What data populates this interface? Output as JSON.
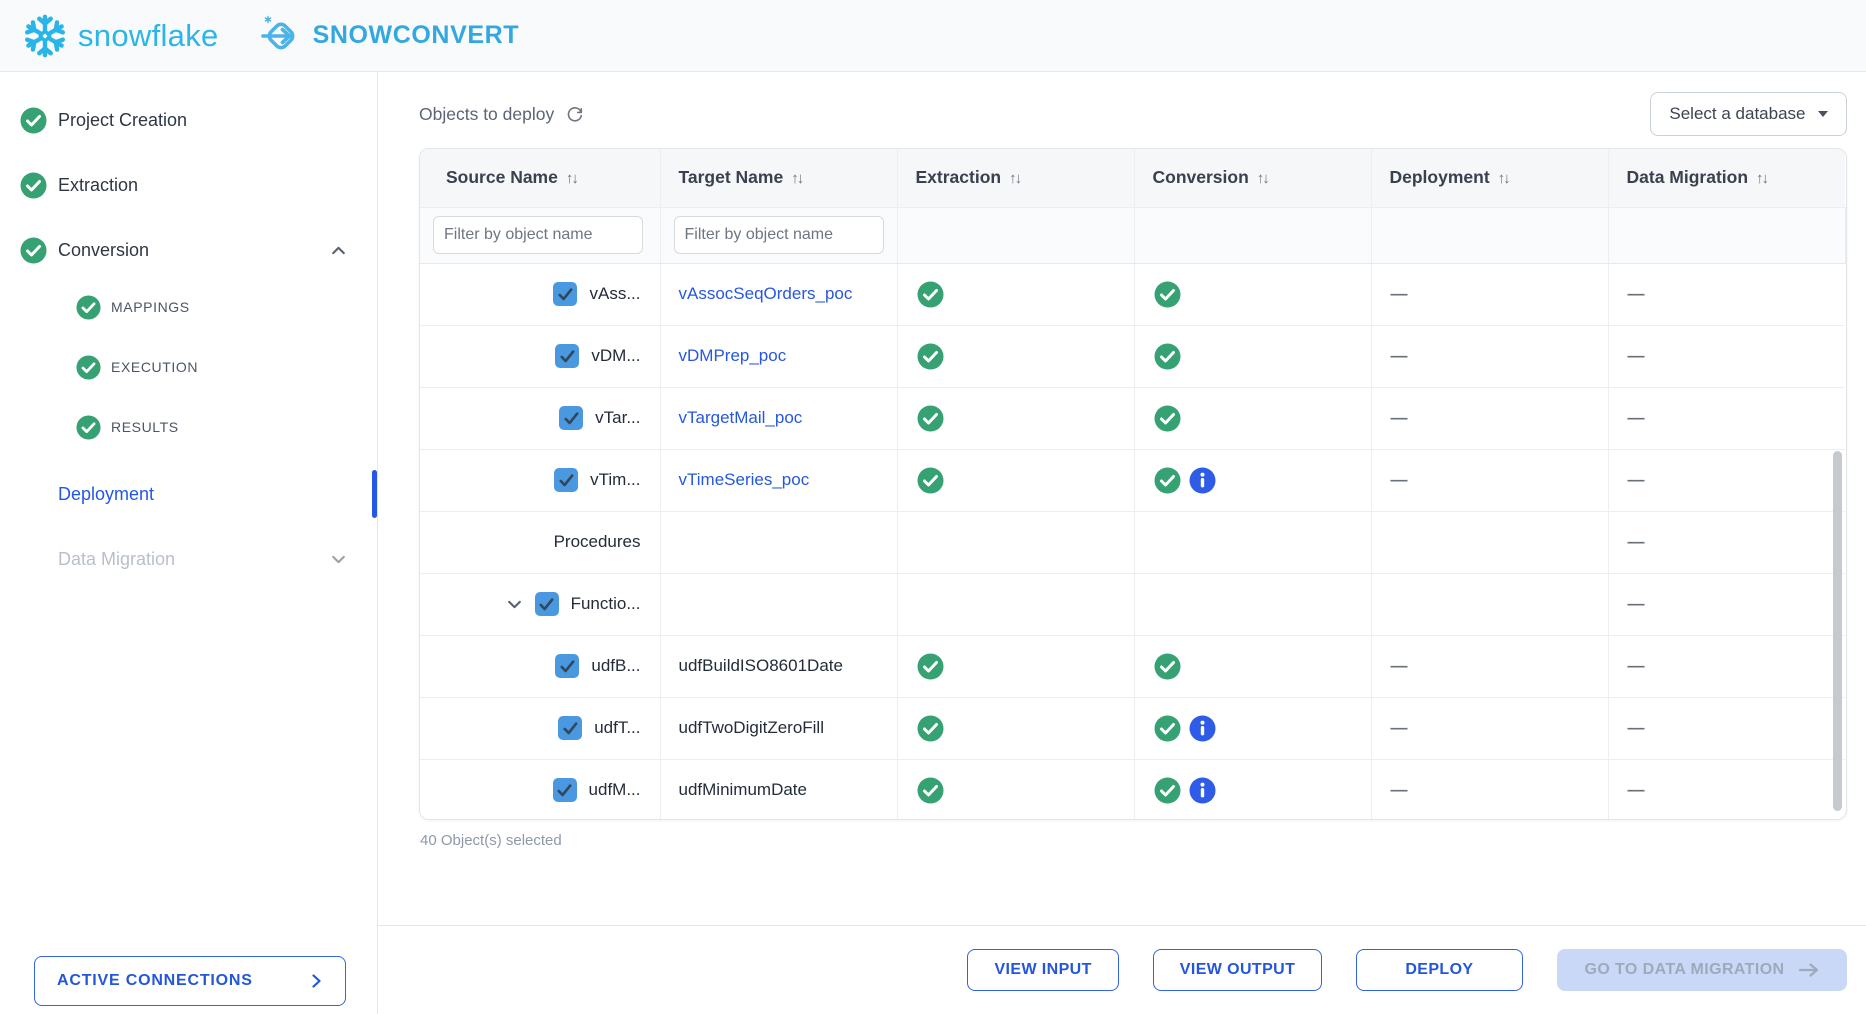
{
  "brand": {
    "snowflake_wordmark": "snowflake",
    "product_wordmark": "SNOWCONVERT"
  },
  "sidebar": {
    "items": [
      {
        "label": "Project Creation",
        "status": "completed"
      },
      {
        "label": "Extraction",
        "status": "completed"
      },
      {
        "label": "Conversion",
        "status": "completed",
        "expanded": true
      },
      {
        "label": "Deployment",
        "status": "active"
      },
      {
        "label": "Data Migration",
        "status": "disabled",
        "expanded": false
      }
    ],
    "conversion_children": [
      {
        "label": "MAPPINGS",
        "status": "completed"
      },
      {
        "label": "EXECUTION",
        "status": "completed"
      },
      {
        "label": "RESULTS",
        "status": "completed"
      }
    ],
    "active_connections_label": "ACTIVE CONNECTIONS"
  },
  "main": {
    "title": "Objects to deploy",
    "database_button_label": "Select a database",
    "table": {
      "columns": [
        "Source Name",
        "Target Name",
        "Extraction",
        "Conversion",
        "Deployment",
        "Data Migration"
      ],
      "filter_placeholder": "Filter by object name",
      "rows": [
        {
          "source": "vAss...",
          "chevron": false,
          "checkbox": true,
          "checked": true,
          "target": "vAssocSeqOrders_poc",
          "target_is_link": true,
          "extraction": "success",
          "conversion": "success",
          "conversion_info": false,
          "deployment": "dash",
          "data_migration": "dash"
        },
        {
          "source": "vDM...",
          "chevron": false,
          "checkbox": true,
          "checked": true,
          "target": "vDMPrep_poc",
          "target_is_link": true,
          "extraction": "success",
          "conversion": "success",
          "conversion_info": false,
          "deployment": "dash",
          "data_migration": "dash"
        },
        {
          "source": "vTar...",
          "chevron": false,
          "checkbox": true,
          "checked": true,
          "target": "vTargetMail_poc",
          "target_is_link": true,
          "extraction": "success",
          "conversion": "success",
          "conversion_info": false,
          "deployment": "dash",
          "data_migration": "dash"
        },
        {
          "source": "vTim...",
          "chevron": false,
          "checkbox": true,
          "checked": true,
          "target": "vTimeSeries_poc",
          "target_is_link": true,
          "extraction": "success",
          "conversion": "success",
          "conversion_info": true,
          "deployment": "dash",
          "data_migration": "dash"
        },
        {
          "source": "Procedures",
          "chevron": false,
          "checkbox": false,
          "checked": false,
          "target": "",
          "target_is_link": false,
          "extraction": "",
          "conversion": "",
          "conversion_info": false,
          "deployment": "",
          "data_migration": "dash"
        },
        {
          "source": "Functio...",
          "chevron": true,
          "checkbox": true,
          "checked": true,
          "target": "",
          "target_is_link": false,
          "extraction": "",
          "conversion": "",
          "conversion_info": false,
          "deployment": "",
          "data_migration": "dash"
        },
        {
          "source": "udfB...",
          "chevron": false,
          "checkbox": true,
          "checked": true,
          "target": "udfBuildISO8601Date",
          "target_is_link": false,
          "extraction": "success",
          "conversion": "success",
          "conversion_info": false,
          "deployment": "dash",
          "data_migration": "dash"
        },
        {
          "source": "udfT...",
          "chevron": false,
          "checkbox": true,
          "checked": true,
          "target": "udfTwoDigitZeroFill",
          "target_is_link": false,
          "extraction": "success",
          "conversion": "success",
          "conversion_info": true,
          "deployment": "dash",
          "data_migration": "dash"
        },
        {
          "source": "udfM...",
          "chevron": false,
          "checkbox": true,
          "checked": true,
          "target": "udfMinimumDate",
          "target_is_link": false,
          "extraction": "success",
          "conversion": "success",
          "conversion_info": true,
          "deployment": "dash",
          "data_migration": "dash"
        }
      ]
    },
    "selection_summary": "40 Object(s) selected",
    "footer_buttons": [
      {
        "label": "VIEW INPUT",
        "enabled": true
      },
      {
        "label": "VIEW OUTPUT",
        "enabled": true
      },
      {
        "label": "DEPLOY",
        "enabled": true
      },
      {
        "label": "GO TO DATA MIGRATION",
        "enabled": false
      }
    ]
  },
  "colors": {
    "snowflake_blue": "#29B5E8",
    "accent_blue": "#2457E0",
    "link_blue": "#2657E0",
    "success_green": "#36A173",
    "info_blue": "#2E5CE6",
    "checkbox_blue": "#4A98E0",
    "disabled_button_bg": "#C9D8F6",
    "sidebar_disabled_text": "#B9BFCA"
  }
}
